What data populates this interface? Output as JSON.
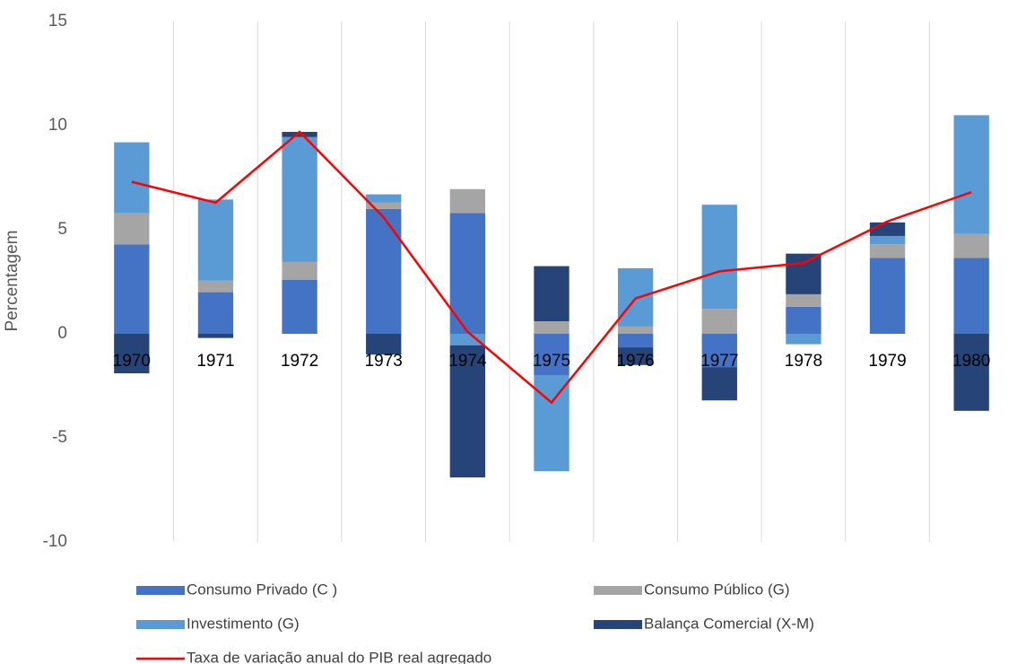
{
  "chart_data": {
    "type": "bar",
    "stacked": true,
    "y_label": "Percentagem",
    "categories": [
      "1970",
      "1971",
      "1972",
      "1973",
      "1974",
      "1975",
      "1976",
      "1977",
      "1978",
      "1979",
      "1980"
    ],
    "series": [
      {
        "name": "Consumo Privado (C )",
        "color": "#4472c4",
        "values": [
          4.3,
          2.0,
          2.6,
          6.0,
          5.8,
          -2.0,
          -0.65,
          -1.6,
          1.3,
          3.65,
          3.65
        ]
      },
      {
        "name": "Consumo Público (G)",
        "color": "#a5a5a5",
        "values": [
          1.5,
          0.55,
          0.85,
          0.3,
          1.15,
          0.6,
          0.35,
          1.2,
          0.6,
          0.65,
          1.15
        ]
      },
      {
        "name": "Investimento (G)",
        "color": "#5b9bd5",
        "values": [
          3.4,
          3.9,
          6.0,
          0.4,
          -0.55,
          -4.6,
          2.8,
          5.0,
          -0.5,
          0.4,
          5.7
        ]
      },
      {
        "name": "Balança Comercial (X-M)",
        "color": "#264478",
        "values": [
          -1.9,
          -0.2,
          0.25,
          -1.0,
          -6.35,
          2.65,
          -0.85,
          -1.6,
          1.95,
          0.65,
          -3.7
        ]
      },
      {
        "name": "Taxa de variação anual do PIB real agregado",
        "type": "line",
        "color": "#ff0000",
        "values": [
          7.3,
          6.3,
          9.7,
          5.6,
          0.1,
          -3.3,
          1.7,
          3.0,
          3.4,
          5.4,
          6.8
        ]
      }
    ],
    "ylim": [
      -10,
      15
    ],
    "yticks": [
      -10,
      -5,
      0,
      5,
      10,
      15
    ],
    "category_separators": true
  }
}
